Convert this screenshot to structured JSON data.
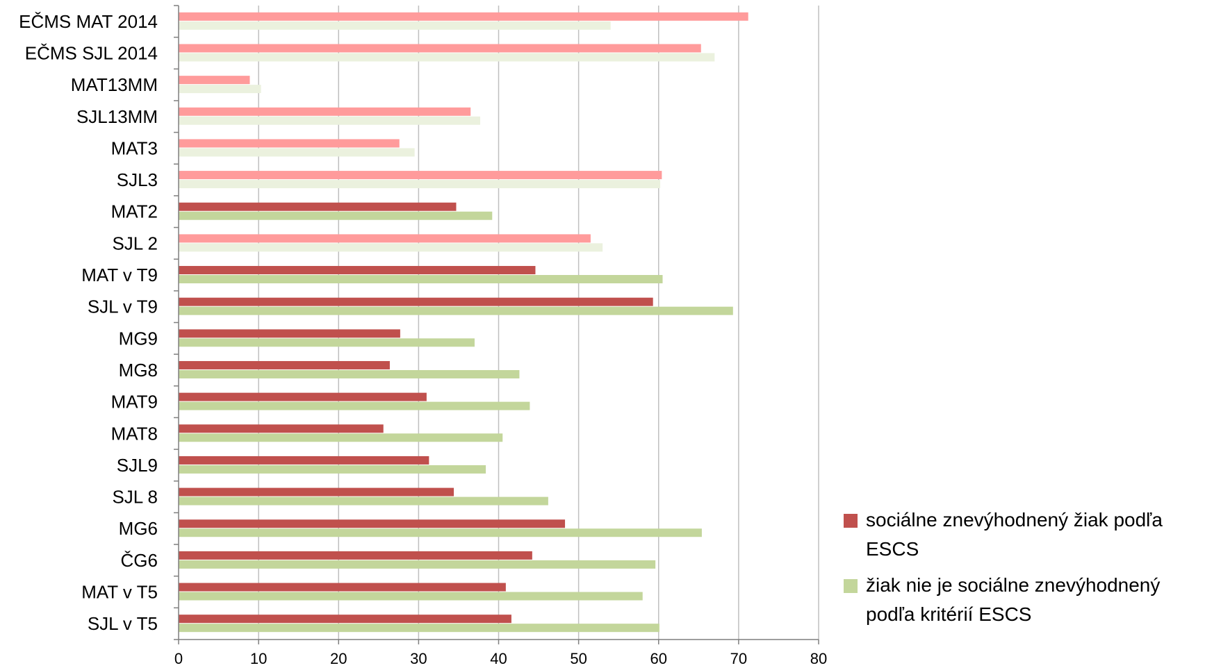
{
  "chart_data": {
    "type": "bar",
    "orientation": "horizontal",
    "categories": [
      "EČMS MAT 2014",
      "EČMS SJL 2014",
      "MAT13MM",
      "SJL13MM",
      "MAT3",
      "SJL3",
      "MAT2",
      "SJL 2",
      "MAT v T9",
      "SJL v T9",
      "MG9",
      "MG8",
      "MAT9",
      "MAT8",
      "SJL9",
      "SJL 8",
      "MG6",
      "ČG6",
      "MAT v T5",
      "SJL v T5"
    ],
    "series": [
      {
        "name": "sociálne znevýhodnený žiak podľa ESCS",
        "color": "#c0504d",
        "light_color": "#ff9b9b",
        "values": [
          71.2,
          65.3,
          8.9,
          36.5,
          27.6,
          60.4,
          34.7,
          51.5,
          44.6,
          59.3,
          27.7,
          26.4,
          31.0,
          25.6,
          31.3,
          34.4,
          48.3,
          44.2,
          40.9,
          41.6
        ]
      },
      {
        "name": "žiak nie je sociálne znevýhodnený podľa kritérií ESCS",
        "color": "#c3d69b",
        "light_color": "#ebf1de",
        "values": [
          54.0,
          67.0,
          10.3,
          37.7,
          29.5,
          60.2,
          39.2,
          53.0,
          60.5,
          69.3,
          37.0,
          42.6,
          43.9,
          40.5,
          38.4,
          46.2,
          65.4,
          59.6,
          58.0,
          60.1
        ]
      }
    ],
    "light_categories": [
      "EČMS MAT 2014",
      "EČMS SJL 2014",
      "MAT13MM",
      "SJL13MM",
      "MAT3",
      "SJL3",
      "SJL 2"
    ],
    "xlim": [
      0,
      80
    ],
    "xticks": [
      "0",
      "10",
      "20",
      "30",
      "40",
      "50",
      "60",
      "70",
      "80"
    ],
    "grid": true,
    "legend_position": "right",
    "title": "",
    "xlabel": "",
    "ylabel": ""
  },
  "legend": {
    "item1": "sociálne znevýhodnený žiak podľa ESCS",
    "item2": "žiak nie je sociálne znevýhodnený podľa kritérií ESCS"
  }
}
